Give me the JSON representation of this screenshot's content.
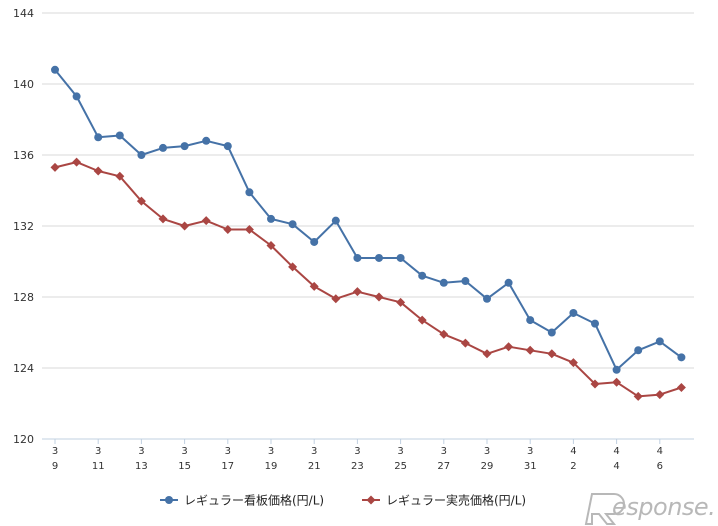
{
  "chart_data": {
    "type": "line",
    "title": "",
    "xlabel": "",
    "ylabel": "",
    "ylim": [
      120,
      144
    ],
    "yticks": [
      "120",
      "124",
      "128",
      "132",
      "136",
      "140",
      "144"
    ],
    "grid": "horizontal",
    "legend_position": "bottom",
    "x_tick_labels": [
      {
        "month": "3",
        "day": "9"
      },
      {
        "month": "3",
        "day": "11"
      },
      {
        "month": "3",
        "day": "13"
      },
      {
        "month": "3",
        "day": "15"
      },
      {
        "month": "3",
        "day": "17"
      },
      {
        "month": "3",
        "day": "19"
      },
      {
        "month": "3",
        "day": "21"
      },
      {
        "month": "3",
        "day": "23"
      },
      {
        "month": "3",
        "day": "25"
      },
      {
        "month": "3",
        "day": "27"
      },
      {
        "month": "3",
        "day": "29"
      },
      {
        "month": "3",
        "day": "31"
      },
      {
        "month": "4",
        "day": "2"
      },
      {
        "month": "4",
        "day": "4"
      },
      {
        "month": "4",
        "day": "6"
      }
    ],
    "series": [
      {
        "name": "レギュラー看板価格(円/L)",
        "color": "#4572a7",
        "marker": "circle",
        "values": [
          140.8,
          139.3,
          137.0,
          137.1,
          136.0,
          136.4,
          136.5,
          136.8,
          136.5,
          133.9,
          132.4,
          132.1,
          131.1,
          132.3,
          130.2,
          130.2,
          130.2,
          129.2,
          128.8,
          128.9,
          127.9,
          128.8,
          126.7,
          126.0,
          127.1,
          126.5,
          123.9,
          125.0,
          125.5,
          124.6
        ]
      },
      {
        "name": "レギュラー実売価格(円/L)",
        "color": "#aa4643",
        "marker": "diamond",
        "values": [
          135.3,
          135.6,
          135.1,
          134.8,
          133.4,
          132.4,
          132.0,
          132.3,
          131.8,
          131.8,
          130.9,
          129.7,
          128.6,
          127.9,
          128.3,
          128.0,
          127.7,
          126.7,
          125.9,
          125.4,
          124.8,
          125.2,
          125.0,
          124.8,
          124.3,
          123.1,
          123.2,
          122.4,
          122.5,
          122.9
        ]
      }
    ]
  },
  "watermark": {
    "text": "Response."
  }
}
